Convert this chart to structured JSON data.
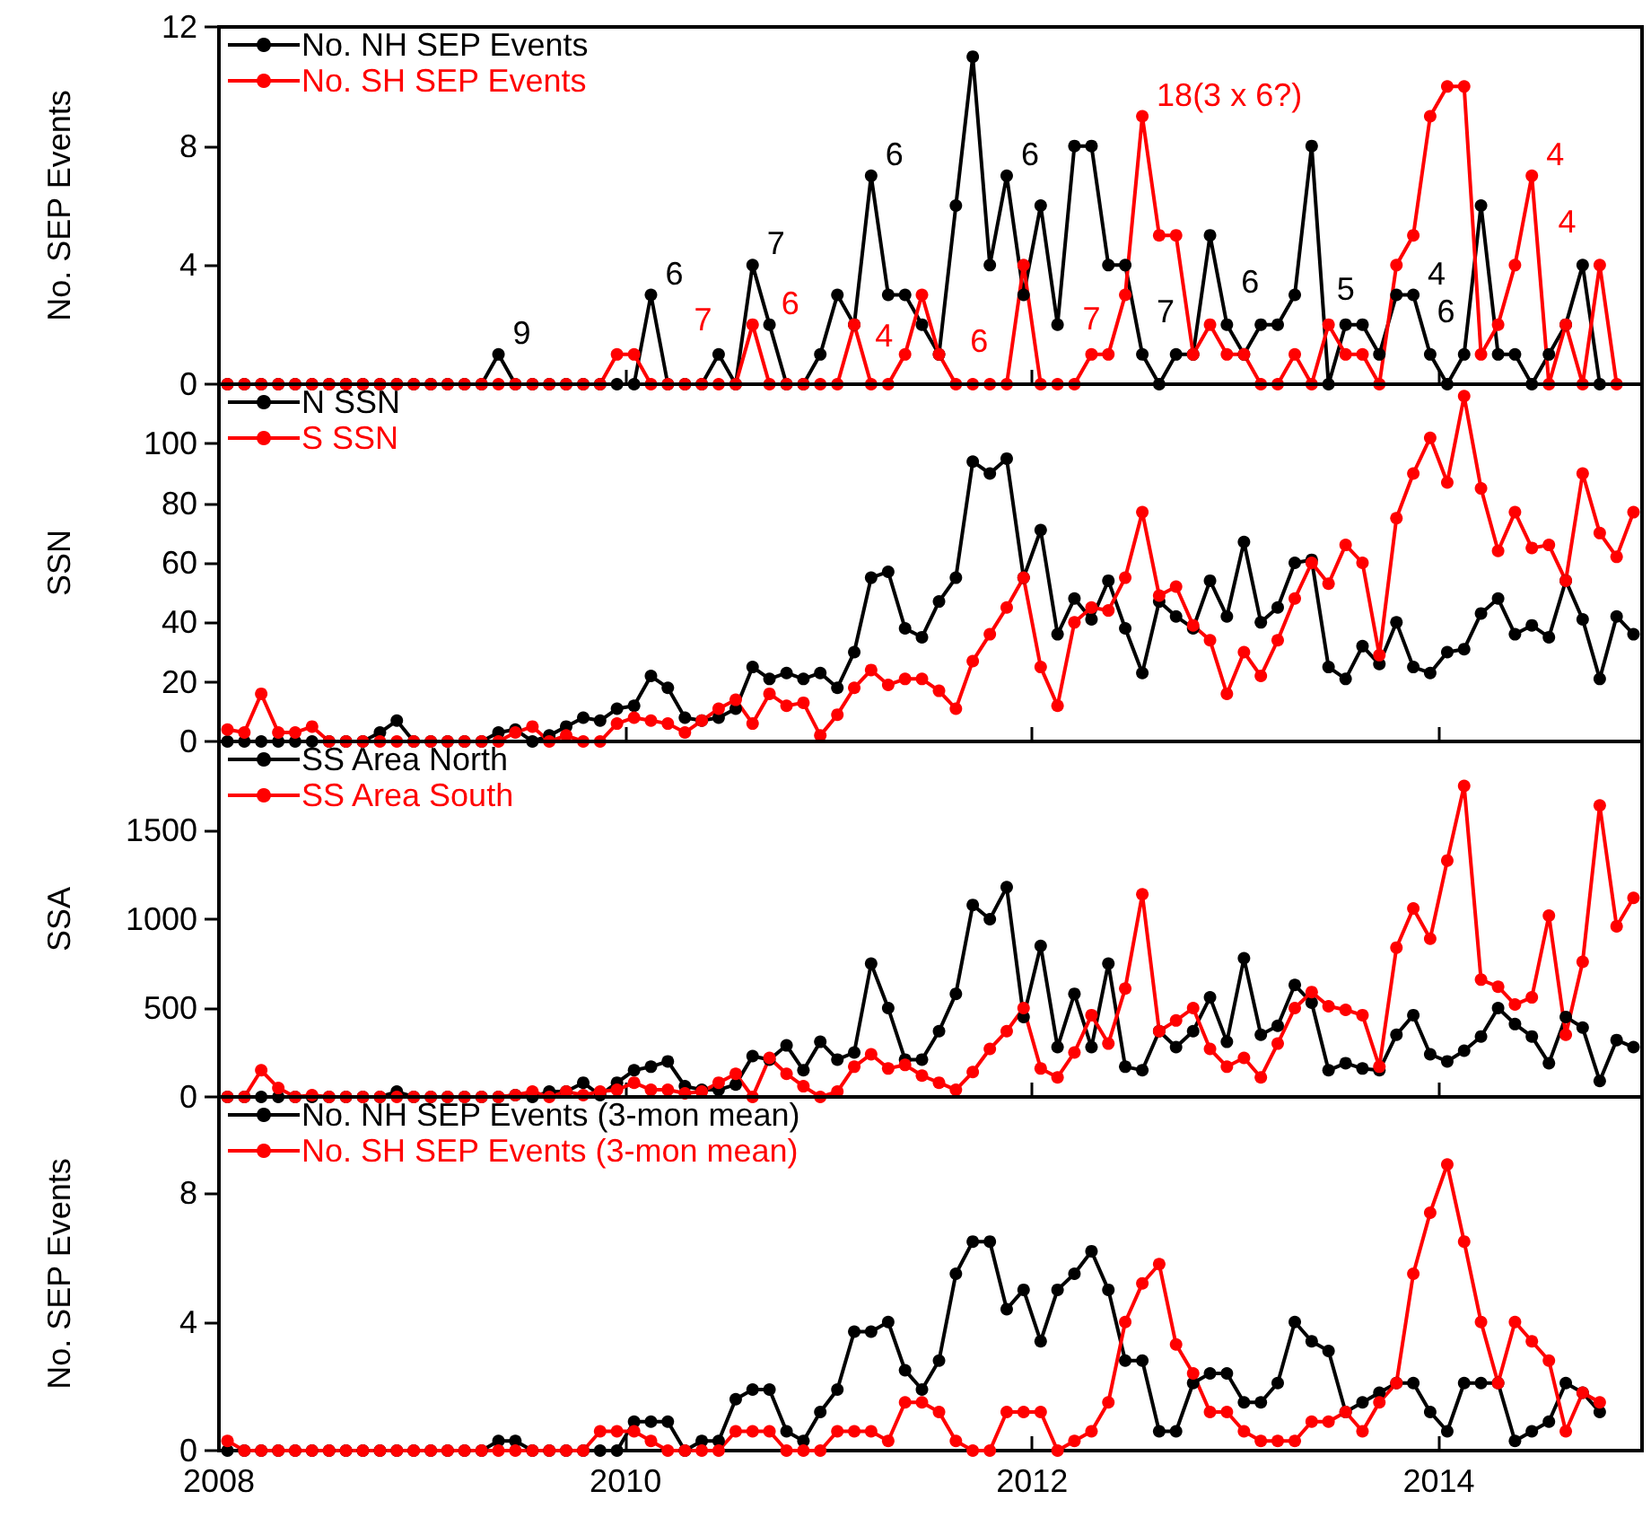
{
  "chart_data": [
    {
      "type": "line",
      "ylabel": "No. SEP Events",
      "xlim": [
        2008,
        2015
      ],
      "xticks": [
        2008,
        2010,
        2012,
        2014
      ],
      "ylim": [
        0,
        12
      ],
      "yticks": [
        0,
        4,
        8,
        12
      ],
      "tick_labels": "y",
      "legend": "top left",
      "marker": "circle",
      "line_style": "solid",
      "x": [
        2008.042,
        2008.125,
        2008.208,
        2008.292,
        2008.375,
        2008.458,
        2008.542,
        2008.625,
        2008.708,
        2008.792,
        2008.875,
        2008.958,
        2009.042,
        2009.125,
        2009.208,
        2009.292,
        2009.375,
        2009.458,
        2009.542,
        2009.625,
        2009.708,
        2009.792,
        2009.875,
        2009.958,
        2010.042,
        2010.125,
        2010.208,
        2010.292,
        2010.375,
        2010.458,
        2010.542,
        2010.625,
        2010.708,
        2010.792,
        2010.875,
        2010.958,
        2011.042,
        2011.125,
        2011.208,
        2011.292,
        2011.375,
        2011.458,
        2011.542,
        2011.625,
        2011.708,
        2011.792,
        2011.875,
        2011.958,
        2012.042,
        2012.125,
        2012.208,
        2012.292,
        2012.375,
        2012.458,
        2012.542,
        2012.625,
        2012.708,
        2012.792,
        2012.875,
        2012.958,
        2013.042,
        2013.125,
        2013.208,
        2013.292,
        2013.375,
        2013.458,
        2013.542,
        2013.625,
        2013.708,
        2013.792,
        2013.875,
        2013.958,
        2014.042,
        2014.125,
        2014.208,
        2014.292,
        2014.375,
        2014.458,
        2014.542,
        2014.625,
        2014.708,
        2014.792,
        2014.875
      ],
      "series": [
        {
          "name": "No. NH SEP Events",
          "color": "#000000",
          "values": [
            0,
            0,
            0,
            0,
            0,
            0,
            0,
            0,
            0,
            0,
            0,
            0,
            0,
            0,
            0,
            0,
            1,
            0,
            0,
            0,
            0,
            0,
            0,
            0,
            0,
            3,
            0,
            0,
            0,
            1,
            0,
            4,
            2,
            0,
            0,
            1,
            3,
            2,
            7,
            3,
            3,
            2,
            1,
            6,
            11,
            4,
            7,
            3,
            6,
            2,
            8,
            8,
            4,
            4,
            1,
            0,
            1,
            1,
            5,
            2,
            1,
            2,
            2,
            3,
            8,
            0,
            2,
            2,
            1,
            3,
            3,
            1,
            0,
            1,
            6,
            1,
            1,
            0,
            1,
            2,
            4,
            0,
            null
          ]
        },
        {
          "name": "No. SH SEP Events",
          "color": "#ff0000",
          "values": [
            0,
            0,
            0,
            0,
            0,
            0,
            0,
            0,
            0,
            0,
            0,
            0,
            0,
            0,
            0,
            0,
            0,
            0,
            0,
            0,
            0,
            0,
            0,
            1,
            1,
            0,
            0,
            0,
            0,
            0,
            0,
            2,
            0,
            0,
            0,
            0,
            0,
            2,
            0,
            0,
            1,
            3,
            1,
            0,
            0,
            0,
            0,
            4,
            0,
            0,
            0,
            1,
            1,
            3,
            9,
            5,
            5,
            1,
            2,
            1,
            1,
            0,
            0,
            1,
            0,
            2,
            1,
            1,
            0,
            4,
            5,
            9,
            10,
            10,
            1,
            2,
            4,
            7,
            0,
            2,
            0,
            4,
            0
          ]
        }
      ],
      "annotations": [
        {
          "text": "9",
          "x": 2009.375,
          "y": 1
        },
        {
          "text": "6",
          "x": 2010.125,
          "y": 3
        },
        {
          "text": "7",
          "x": 2010.125,
          "y": 0
        },
        {
          "text": "7",
          "x": 2010.625,
          "y": 4
        },
        {
          "text": "6",
          "x": 2010.625,
          "y": 2
        },
        {
          "text": "4",
          "x": 2011.042,
          "y": 0
        },
        {
          "text": "6",
          "x": 2011.208,
          "y": 7
        },
        {
          "text": "6",
          "x": 2011.625,
          "y": 0
        },
        {
          "text": "6",
          "x": 2011.875,
          "y": 7
        },
        {
          "text": "7",
          "x": 2012.292,
          "y": 1
        },
        {
          "text": "7",
          "x": 2012.542,
          "y": 1
        },
        {
          "text": "6",
          "x": 2012.958,
          "y": 2
        },
        {
          "text": "18(3 x 6?)",
          "x": 2012.542,
          "y": 9
        },
        {
          "text": "5",
          "x": 2013.542,
          "y": 2
        },
        {
          "text": "4",
          "x": 2013.875,
          "y": 3
        },
        {
          "text": "4",
          "x": 2014.458,
          "y": 7
        },
        {
          "text": "6",
          "x": 2014.292,
          "y": 1
        },
        {
          "text": "4",
          "x": 2014.375,
          "y": 4
        }
      ]
    },
    {
      "type": "line",
      "ylabel": "SSN",
      "xlim": [
        2008,
        2015
      ],
      "xticks": [
        2008,
        2010,
        2012,
        2014
      ],
      "ylim": [
        0,
        120
      ],
      "yticks": [
        0,
        20,
        40,
        60,
        80,
        100
      ],
      "tick_labels": "y",
      "legend": "top left",
      "marker": "circle",
      "line_style": "solid",
      "x": [
        2008.042,
        2008.125,
        2008.208,
        2008.292,
        2008.375,
        2008.458,
        2008.542,
        2008.625,
        2008.708,
        2008.792,
        2008.875,
        2008.958,
        2009.042,
        2009.125,
        2009.208,
        2009.292,
        2009.375,
        2009.458,
        2009.542,
        2009.625,
        2009.708,
        2009.792,
        2009.875,
        2009.958,
        2010.042,
        2010.125,
        2010.208,
        2010.292,
        2010.375,
        2010.458,
        2010.542,
        2010.625,
        2010.708,
        2010.792,
        2010.875,
        2010.958,
        2011.042,
        2011.125,
        2011.208,
        2011.292,
        2011.375,
        2011.458,
        2011.542,
        2011.625,
        2011.708,
        2011.792,
        2011.875,
        2011.958,
        2012.042,
        2012.125,
        2012.208,
        2012.292,
        2012.375,
        2012.458,
        2012.542,
        2012.625,
        2012.708,
        2012.792,
        2012.875,
        2012.958,
        2013.042,
        2013.125,
        2013.208,
        2013.292,
        2013.375,
        2013.458,
        2013.542,
        2013.625,
        2013.708,
        2013.792,
        2013.875,
        2013.958,
        2014.042,
        2014.125,
        2014.208,
        2014.292,
        2014.375,
        2014.458,
        2014.542,
        2014.625,
        2014.708,
        2014.792,
        2014.875,
        2014.958
      ],
      "series": [
        {
          "name": "N SSN",
          "color": "#000000",
          "values": [
            0,
            0,
            0,
            0,
            0,
            0,
            0,
            0,
            0,
            3,
            7,
            0,
            0,
            0,
            0,
            0,
            3,
            4,
            0,
            2,
            5,
            8,
            7,
            11,
            12,
            22,
            18,
            8,
            7,
            8,
            11,
            25,
            21,
            23,
            21,
            23,
            18,
            30,
            55,
            57,
            38,
            35,
            47,
            55,
            94,
            90,
            95,
            55,
            71,
            36,
            48,
            41,
            54,
            38,
            23,
            47,
            42,
            38,
            54,
            42,
            67,
            40,
            45,
            60,
            61,
            25,
            21,
            32,
            26,
            40,
            25,
            23,
            30,
            31,
            43,
            48,
            36,
            39,
            35,
            54,
            41,
            21,
            42,
            36
          ]
        },
        {
          "name": "S SSN",
          "color": "#ff0000",
          "values": [
            4,
            3,
            16,
            3,
            3,
            5,
            0,
            0,
            0,
            0,
            0,
            0,
            0,
            0,
            0,
            0,
            0,
            3,
            5,
            0,
            2,
            0,
            0,
            6,
            8,
            7,
            6,
            3,
            7,
            11,
            14,
            6,
            16,
            12,
            13,
            2,
            9,
            18,
            24,
            19,
            21,
            21,
            17,
            11,
            27,
            36,
            45,
            55,
            25,
            12,
            40,
            45,
            44,
            55,
            77,
            49,
            52,
            39,
            34,
            16,
            30,
            22,
            34,
            48,
            60,
            53,
            66,
            60,
            29,
            75,
            90,
            102,
            87,
            116,
            85,
            64,
            77,
            65,
            66,
            54,
            90,
            70,
            62,
            77
          ]
        }
      ]
    },
    {
      "type": "line",
      "ylabel": "SSA",
      "xlim": [
        2008,
        2015
      ],
      "xticks": [
        2008,
        2010,
        2012,
        2014
      ],
      "ylim": [
        0,
        2000
      ],
      "yticks": [
        0,
        500,
        1000,
        1500
      ],
      "tick_labels": "y",
      "legend": "top left",
      "marker": "circle",
      "line_style": "solid",
      "x": [
        2008.042,
        2008.125,
        2008.208,
        2008.292,
        2008.375,
        2008.458,
        2008.542,
        2008.625,
        2008.708,
        2008.792,
        2008.875,
        2008.958,
        2009.042,
        2009.125,
        2009.208,
        2009.292,
        2009.375,
        2009.458,
        2009.542,
        2009.625,
        2009.708,
        2009.792,
        2009.875,
        2009.958,
        2010.042,
        2010.125,
        2010.208,
        2010.292,
        2010.375,
        2010.458,
        2010.542,
        2010.625,
        2010.708,
        2010.792,
        2010.875,
        2010.958,
        2011.042,
        2011.125,
        2011.208,
        2011.292,
        2011.375,
        2011.458,
        2011.542,
        2011.625,
        2011.708,
        2011.792,
        2011.875,
        2011.958,
        2012.042,
        2012.125,
        2012.208,
        2012.292,
        2012.375,
        2012.458,
        2012.542,
        2012.625,
        2012.708,
        2012.792,
        2012.875,
        2012.958,
        2013.042,
        2013.125,
        2013.208,
        2013.292,
        2013.375,
        2013.458,
        2013.542,
        2013.625,
        2013.708,
        2013.792,
        2013.875,
        2013.958,
        2014.042,
        2014.125,
        2014.208,
        2014.292,
        2014.375,
        2014.458,
        2014.542,
        2014.625,
        2014.708,
        2014.792,
        2014.875,
        2014.958
      ],
      "series": [
        {
          "name": "SS Area North",
          "color": "#000000",
          "values": [
            0,
            0,
            0,
            0,
            0,
            0,
            0,
            0,
            0,
            0,
            30,
            0,
            0,
            0,
            0,
            0,
            0,
            10,
            0,
            30,
            30,
            80,
            10,
            80,
            150,
            170,
            200,
            60,
            40,
            40,
            70,
            230,
            210,
            290,
            150,
            310,
            210,
            250,
            750,
            500,
            210,
            210,
            370,
            580,
            1080,
            1000,
            1180,
            450,
            850,
            280,
            580,
            280,
            750,
            170,
            150,
            370,
            280,
            370,
            560,
            310,
            780,
            350,
            400,
            630,
            530,
            150,
            190,
            160,
            150,
            350,
            460,
            240,
            200,
            260,
            340,
            500,
            410,
            340,
            190,
            450,
            390,
            90,
            320,
            280
          ]
        },
        {
          "name": "SS Area South",
          "color": "#ff0000",
          "values": [
            0,
            0,
            150,
            50,
            0,
            10,
            0,
            0,
            0,
            0,
            0,
            0,
            0,
            0,
            0,
            0,
            0,
            10,
            30,
            0,
            30,
            10,
            30,
            40,
            80,
            40,
            40,
            20,
            30,
            80,
            130,
            0,
            220,
            130,
            60,
            0,
            30,
            170,
            240,
            160,
            180,
            120,
            80,
            40,
            140,
            270,
            370,
            500,
            160,
            110,
            250,
            460,
            300,
            610,
            1140,
            370,
            430,
            500,
            270,
            170,
            220,
            110,
            300,
            500,
            590,
            510,
            490,
            460,
            170,
            840,
            1060,
            890,
            1330,
            1750,
            660,
            620,
            520,
            560,
            1020,
            350,
            760,
            1640,
            960,
            1120
          ]
        }
      ]
    },
    {
      "type": "line",
      "ylabel": "No. SEP Events",
      "xlim": [
        2008,
        2015
      ],
      "xticks": [
        2008,
        2010,
        2012,
        2014
      ],
      "ylim": [
        0,
        11
      ],
      "yticks": [
        0,
        4,
        8
      ],
      "legend": "top left",
      "marker": "circle",
      "line_style": "solid",
      "x": [
        2008.042,
        2008.125,
        2008.208,
        2008.292,
        2008.375,
        2008.458,
        2008.542,
        2008.625,
        2008.708,
        2008.792,
        2008.875,
        2008.958,
        2009.042,
        2009.125,
        2009.208,
        2009.292,
        2009.375,
        2009.458,
        2009.542,
        2009.625,
        2009.708,
        2009.792,
        2009.875,
        2009.958,
        2010.042,
        2010.125,
        2010.208,
        2010.292,
        2010.375,
        2010.458,
        2010.542,
        2010.625,
        2010.708,
        2010.792,
        2010.875,
        2010.958,
        2011.042,
        2011.125,
        2011.208,
        2011.292,
        2011.375,
        2011.458,
        2011.542,
        2011.625,
        2011.708,
        2011.792,
        2011.875,
        2011.958,
        2012.042,
        2012.125,
        2012.208,
        2012.292,
        2012.375,
        2012.458,
        2012.542,
        2012.625,
        2012.708,
        2012.792,
        2012.875,
        2012.958,
        2013.042,
        2013.125,
        2013.208,
        2013.292,
        2013.375,
        2013.458,
        2013.542,
        2013.625,
        2013.708,
        2013.792,
        2013.875,
        2013.958,
        2014.042,
        2014.125,
        2014.208,
        2014.292,
        2014.375,
        2014.458,
        2014.542,
        2014.625,
        2014.708,
        2014.792
      ],
      "series": [
        {
          "name": "No. NH SEP Events (3-mon mean)",
          "color": "#000000",
          "values": [
            0,
            0,
            0,
            0,
            0,
            0,
            0,
            0,
            0,
            0,
            0,
            0,
            0,
            0,
            0,
            0,
            0.3,
            0.3,
            0,
            0,
            0,
            0,
            0,
            0,
            0.9,
            0.9,
            0.9,
            0,
            0.3,
            0.3,
            1.6,
            1.9,
            1.9,
            0.6,
            0.3,
            1.2,
            1.9,
            3.7,
            3.7,
            4.0,
            2.5,
            1.9,
            2.8,
            5.5,
            6.5,
            6.5,
            4.4,
            5.0,
            3.4,
            5.0,
            5.5,
            6.2,
            5.0,
            2.8,
            2.8,
            0.6,
            0.6,
            2.1,
            2.4,
            2.4,
            1.5,
            1.5,
            2.1,
            4.0,
            3.4,
            3.1,
            1.2,
            1.5,
            1.8,
            2.1,
            2.1,
            1.2,
            0.6,
            2.1,
            2.1,
            2.1,
            0.3,
            0.6,
            0.9,
            2.1,
            1.8,
            1.2
          ]
        },
        {
          "name": "No. SH SEP Events (3-mon mean)",
          "color": "#ff0000",
          "values": [
            0.3,
            0,
            0,
            0,
            0,
            0,
            0,
            0,
            0,
            0,
            0,
            0,
            0,
            0,
            0,
            0,
            0,
            0,
            0,
            0,
            0,
            0,
            0.6,
            0.6,
            0.6,
            0.3,
            0,
            0,
            0,
            0,
            0.6,
            0.6,
            0.6,
            0,
            0,
            0,
            0.6,
            0.6,
            0.6,
            0.3,
            1.5,
            1.5,
            1.2,
            0.3,
            0,
            0,
            1.2,
            1.2,
            1.2,
            0,
            0.3,
            0.6,
            1.5,
            4.0,
            5.2,
            5.8,
            3.3,
            2.4,
            1.2,
            1.2,
            0.6,
            0.3,
            0.3,
            0.3,
            0.9,
            0.9,
            1.2,
            0.6,
            1.5,
            2.1,
            5.5,
            7.4,
            8.9,
            6.5,
            4.0,
            2.1,
            4.0,
            3.4,
            2.8,
            0.6,
            1.8,
            1.5
          ]
        }
      ]
    }
  ]
}
